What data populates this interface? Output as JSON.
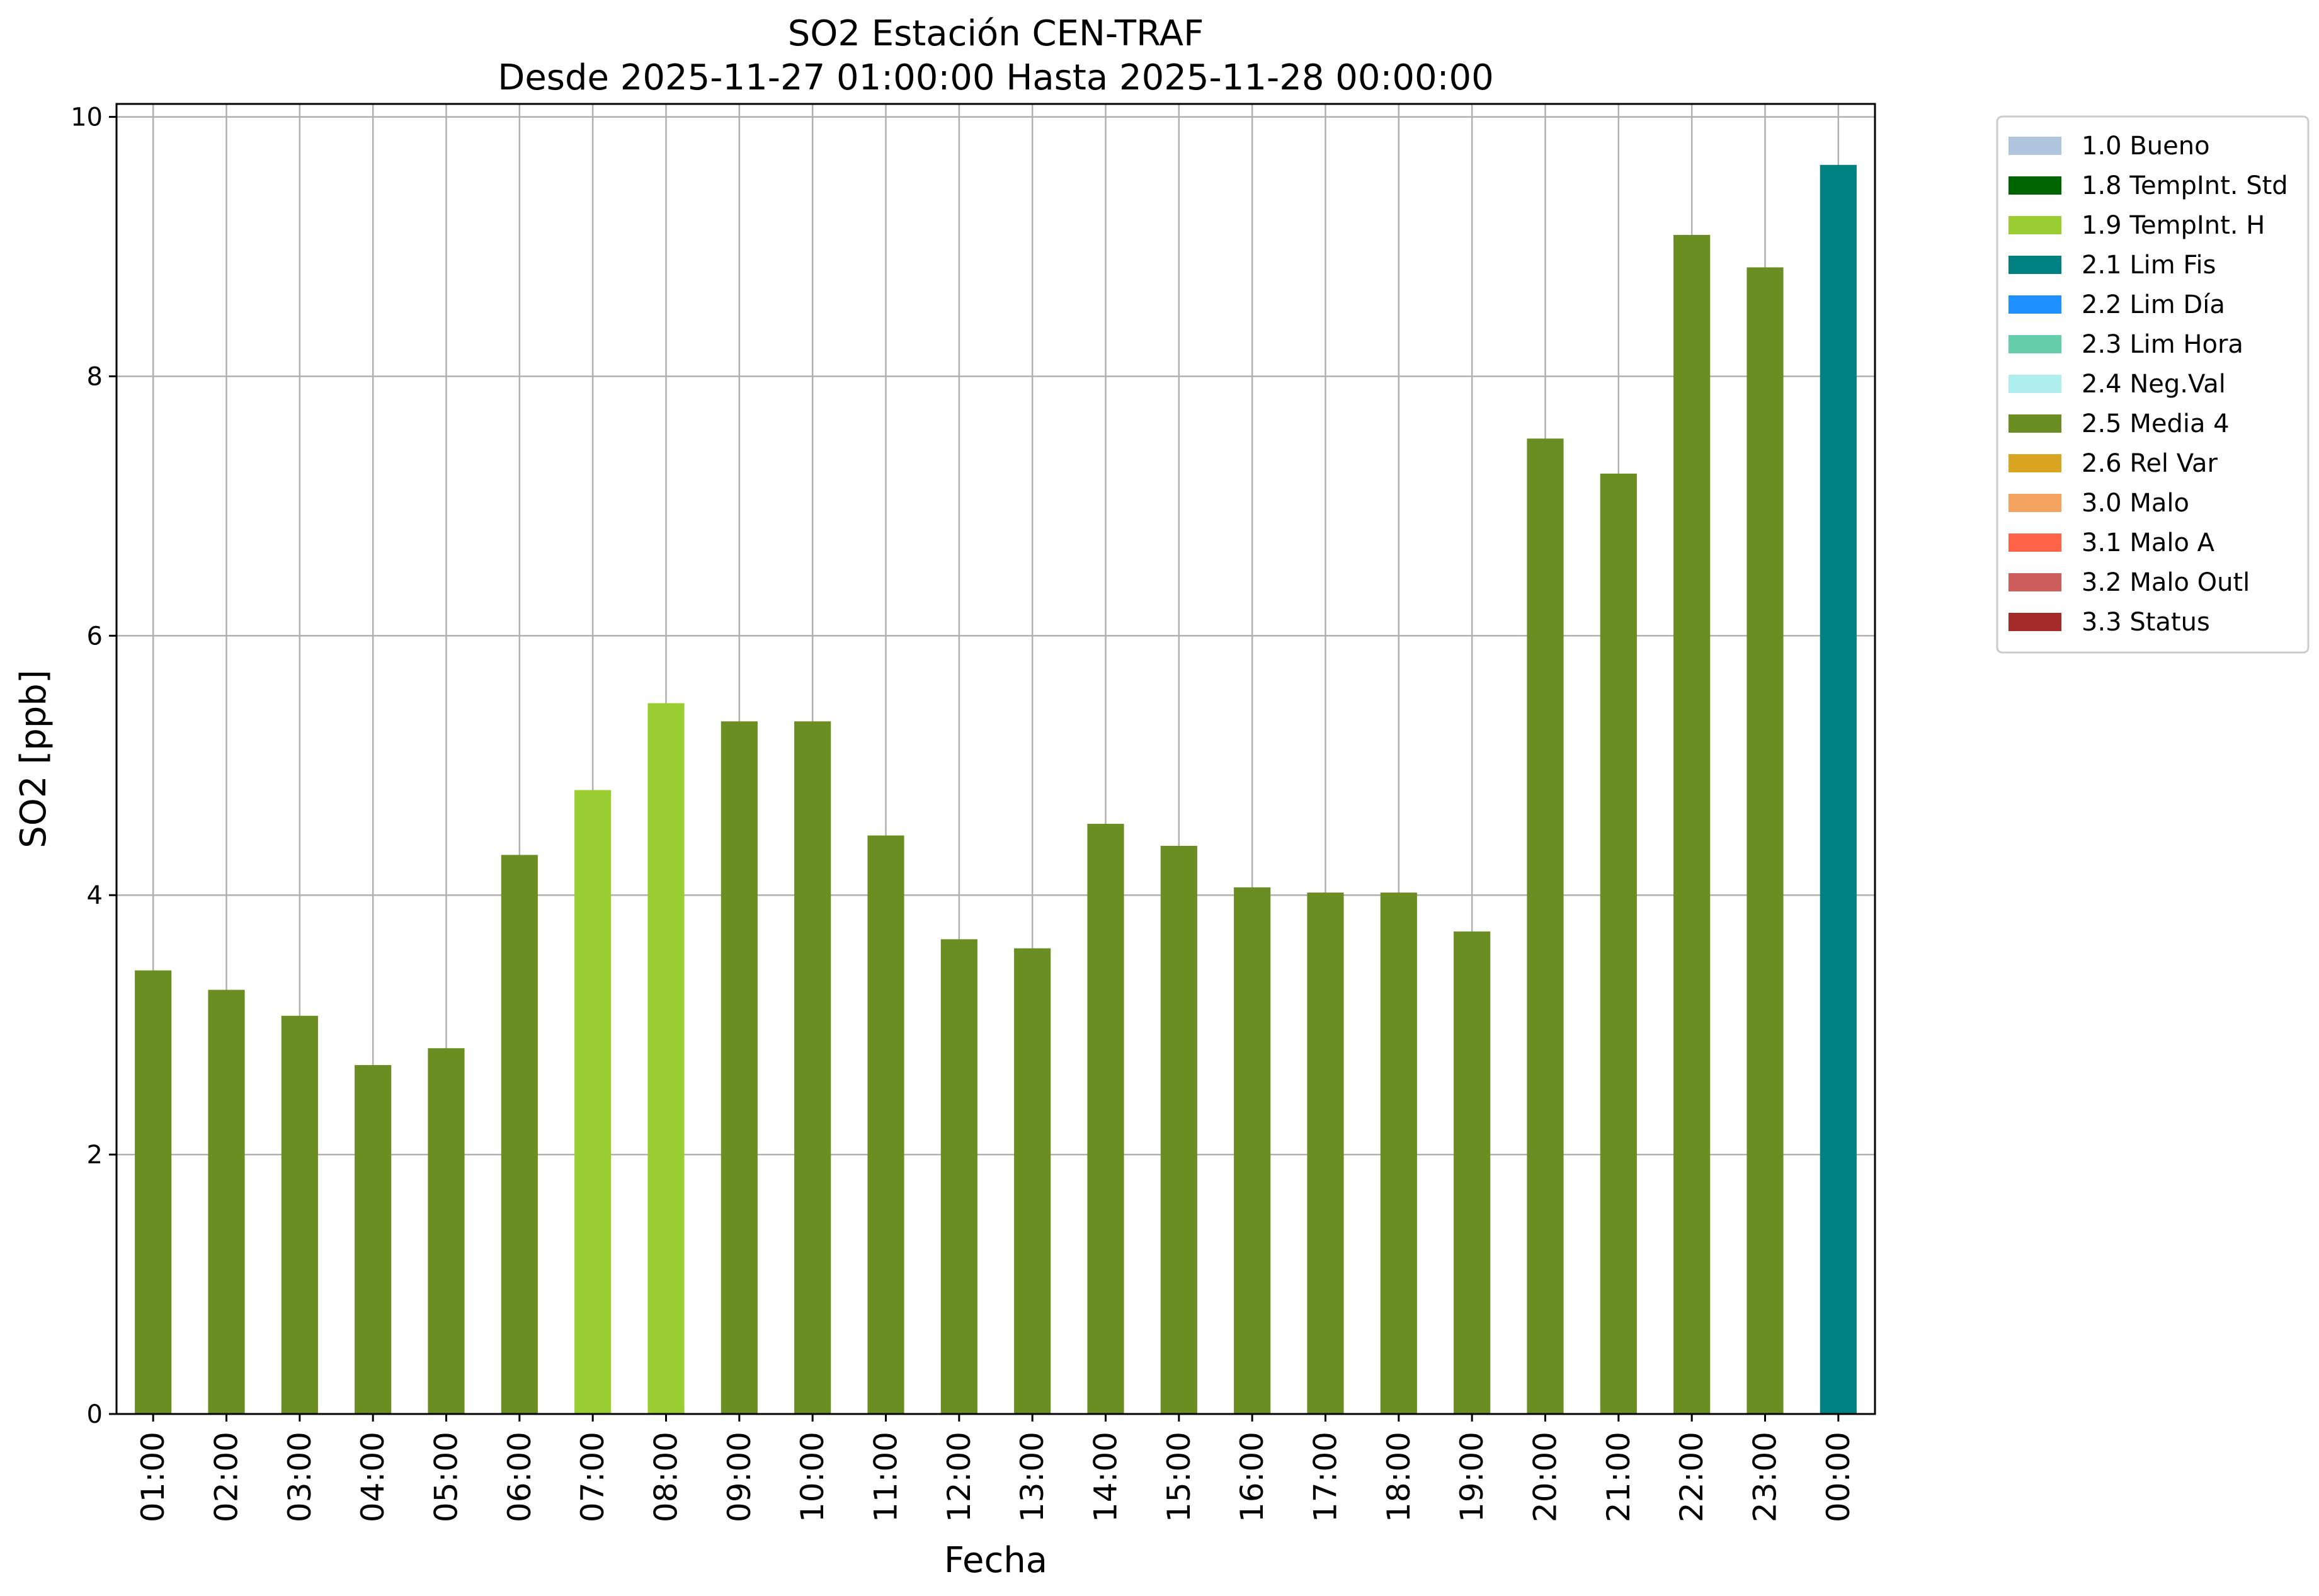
{
  "chart_data": {
    "type": "bar",
    "title": "SO2 Estación CEN-TRAF",
    "subtitle": "Desde 2025-11-27 01:00:00 Hasta 2025-11-28 00:00:00",
    "xlabel": "Fecha",
    "ylabel": "SO2 [ppb]",
    "ylim": [
      0,
      10.1
    ],
    "yticks": [
      0,
      2,
      4,
      6,
      8,
      10
    ],
    "grid": true,
    "legend_position": "outside-top-right",
    "categories": [
      "01:00",
      "02:00",
      "03:00",
      "04:00",
      "05:00",
      "06:00",
      "07:00",
      "08:00",
      "09:00",
      "10:00",
      "11:00",
      "12:00",
      "13:00",
      "14:00",
      "15:00",
      "16:00",
      "17:00",
      "18:00",
      "19:00",
      "20:00",
      "21:00",
      "22:00",
      "23:00",
      "00:00"
    ],
    "values": [
      3.42,
      3.27,
      3.07,
      2.69,
      2.82,
      4.31,
      4.81,
      5.48,
      5.34,
      5.34,
      4.46,
      3.66,
      3.59,
      4.55,
      4.38,
      4.06,
      4.02,
      4.02,
      3.72,
      7.52,
      7.25,
      9.09,
      8.84,
      9.63
    ],
    "flags": [
      "2.5 Media 4",
      "2.5 Media 4",
      "2.5 Media 4",
      "2.5 Media 4",
      "2.5 Media 4",
      "2.5 Media 4",
      "1.9 TempInt. H",
      "1.9 TempInt. H",
      "2.5 Media 4",
      "2.5 Media 4",
      "2.5 Media 4",
      "2.5 Media 4",
      "2.5 Media 4",
      "2.5 Media 4",
      "2.5 Media 4",
      "2.5 Media 4",
      "2.5 Media 4",
      "2.5 Media 4",
      "2.5 Media 4",
      "2.5 Media 4",
      "2.5 Media 4",
      "2.5 Media 4",
      "2.5 Media 4",
      "2.1 Lim Fis"
    ],
    "legend": [
      {
        "name": "1.0 Bueno",
        "color": "#b0c4de"
      },
      {
        "name": "1.8 TempInt. Std",
        "color": "#006400"
      },
      {
        "name": "1.9 TempInt. H",
        "color": "#9acd32"
      },
      {
        "name": "2.1 Lim Fis",
        "color": "#008080"
      },
      {
        "name": "2.2 Lim Día",
        "color": "#1e90ff"
      },
      {
        "name": "2.3 Lim Hora",
        "color": "#66cdaa"
      },
      {
        "name": "2.4 Neg.Val",
        "color": "#afeeee"
      },
      {
        "name": "2.5 Media 4",
        "color": "#6b8e23"
      },
      {
        "name": "2.6 Rel Var",
        "color": "#daa520"
      },
      {
        "name": "3.0 Malo",
        "color": "#f4a460"
      },
      {
        "name": "3.1 Malo A",
        "color": "#ff6347"
      },
      {
        "name": "3.2 Malo Outl",
        "color": "#cd5c5c"
      },
      {
        "name": "3.3 Status",
        "color": "#a52a2a"
      }
    ]
  }
}
